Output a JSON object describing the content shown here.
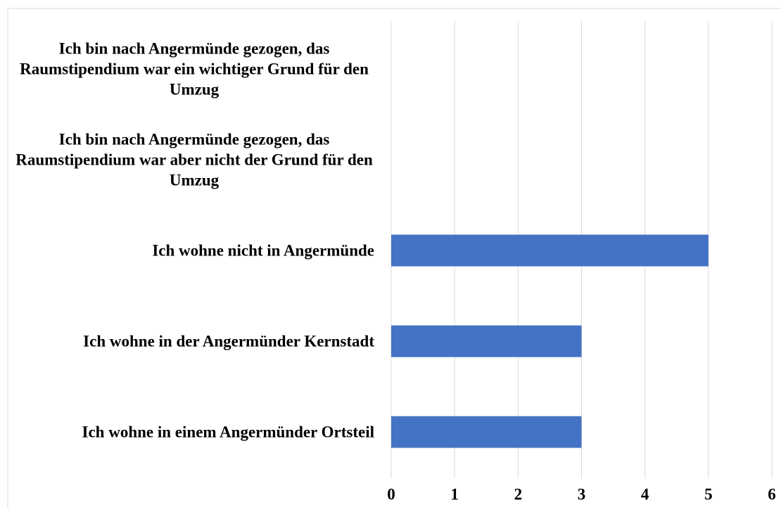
{
  "chart_data": {
    "type": "bar",
    "orientation": "horizontal",
    "categories": [
      "Ich bin nach Angermünde gezogen, das Raumstipendium war ein wichtiger Grund für den Umzug",
      "Ich bin nach Angermünde gezogen, das Raumstipendium war aber nicht der Grund für den Umzug",
      "Ich wohne nicht in Angermünde",
      "Ich wohne in der Angermünder Kernstadt",
      "Ich wohne in einem Angermünder Ortsteil"
    ],
    "values": [
      0,
      0,
      5,
      3,
      3
    ],
    "color": "#4472c4",
    "xlim": [
      0,
      6
    ],
    "xticks": [
      0,
      1,
      2,
      3,
      4,
      5,
      6
    ],
    "grid": true
  }
}
